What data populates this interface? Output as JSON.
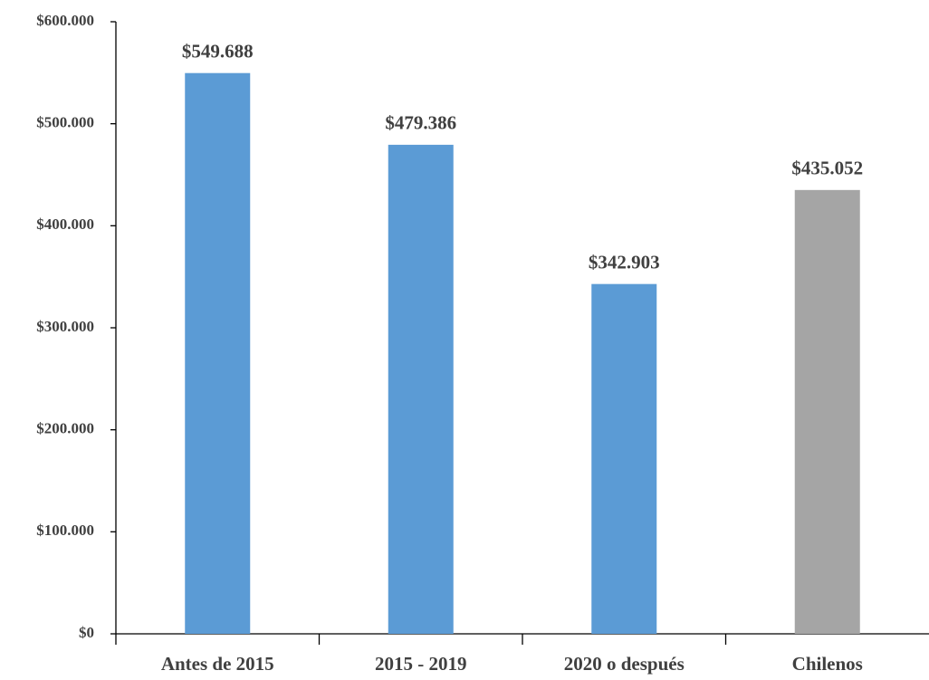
{
  "chart_data": {
    "type": "bar",
    "categories": [
      "Antes de 2015",
      "2015 - 2019",
      "2020 o después",
      "Chilenos"
    ],
    "values": [
      549688,
      479386,
      342903,
      435052
    ],
    "value_labels": [
      "$549.688",
      "$479.386",
      "$342.903",
      "$435.052"
    ],
    "colors": [
      "#5b9bd5",
      "#5b9bd5",
      "#5b9bd5",
      "#a5a5a5"
    ],
    "ylim": [
      0,
      600000
    ],
    "yticks": [
      {
        "value": 0,
        "label": "$0"
      },
      {
        "value": 100000,
        "label": "$100.000"
      },
      {
        "value": 200000,
        "label": "$200.000"
      },
      {
        "value": 300000,
        "label": "$300.000"
      },
      {
        "value": 400000,
        "label": "$400.000"
      },
      {
        "value": 500000,
        "label": "$500.000"
      },
      {
        "value": 600000,
        "label": "$600.000"
      }
    ],
    "grid": false
  }
}
